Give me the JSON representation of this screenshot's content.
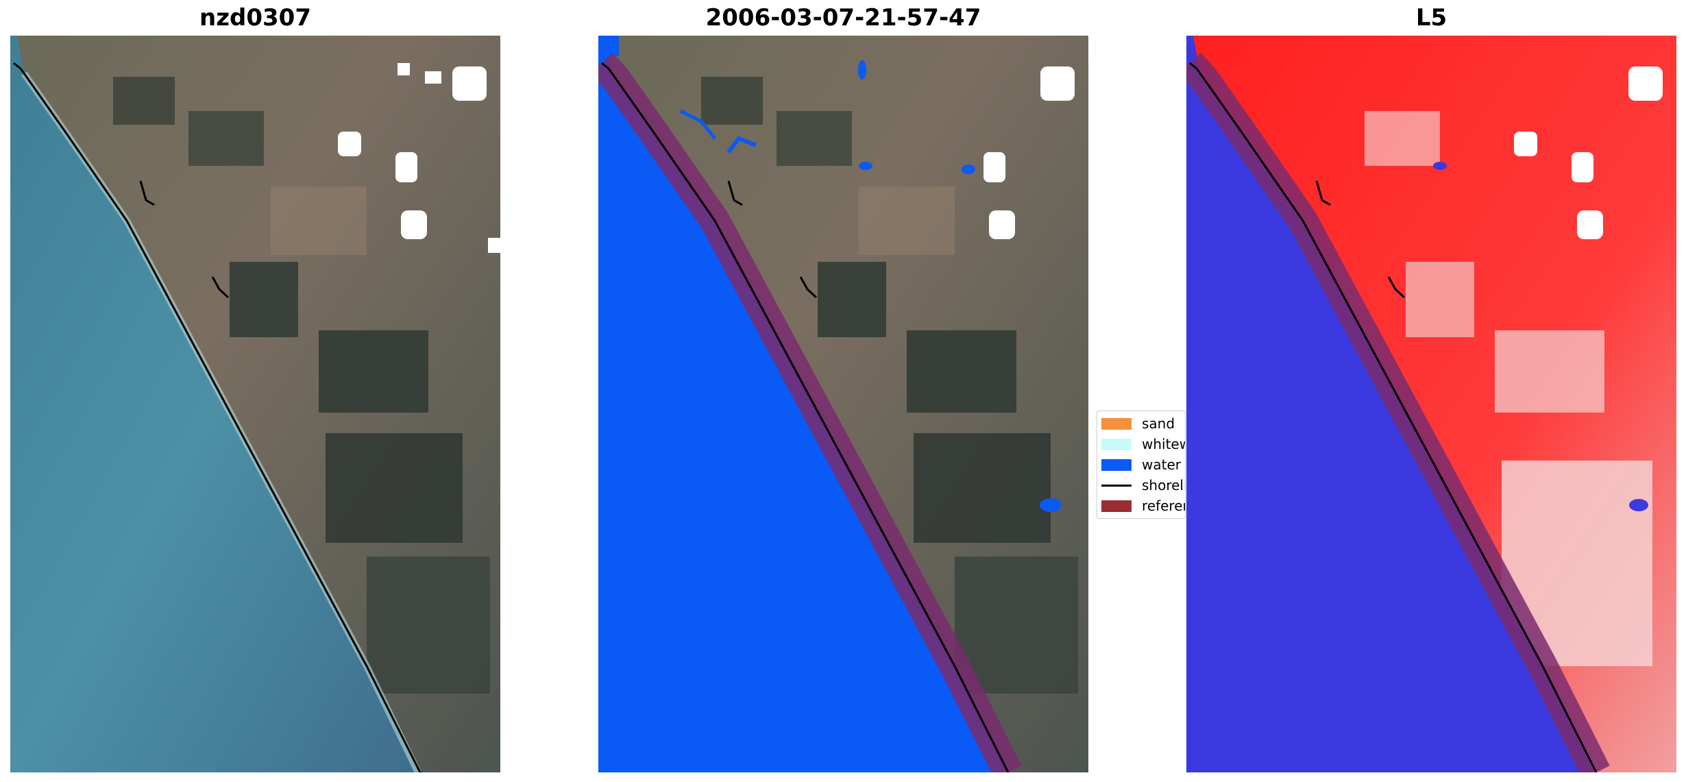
{
  "panels": [
    {
      "title": "nzd0307"
    },
    {
      "title": "2006-03-07-21-57-47"
    },
    {
      "title": "L5"
    }
  ],
  "legend": {
    "items": [
      {
        "label": "sand",
        "color": "#f5913c",
        "kind": "patch"
      },
      {
        "label": "whitewater",
        "color": "#c8fafa",
        "kind": "patch"
      },
      {
        "label": "water",
        "color": "#0a5af5",
        "kind": "patch"
      },
      {
        "label": "shoreline",
        "color": "#000000",
        "kind": "line"
      },
      {
        "label": "reference shoreline buffer",
        "color": "#9b2d30",
        "kind": "patch"
      }
    ]
  },
  "colors": {
    "ocean_rgb": "#4d8aa0",
    "land_rgb": "#5a5e55",
    "water_class": "#0a5af5",
    "buffer": "#7a2c6e",
    "index_land": "#ff1a1a",
    "index_water": "#3a3ae0"
  }
}
